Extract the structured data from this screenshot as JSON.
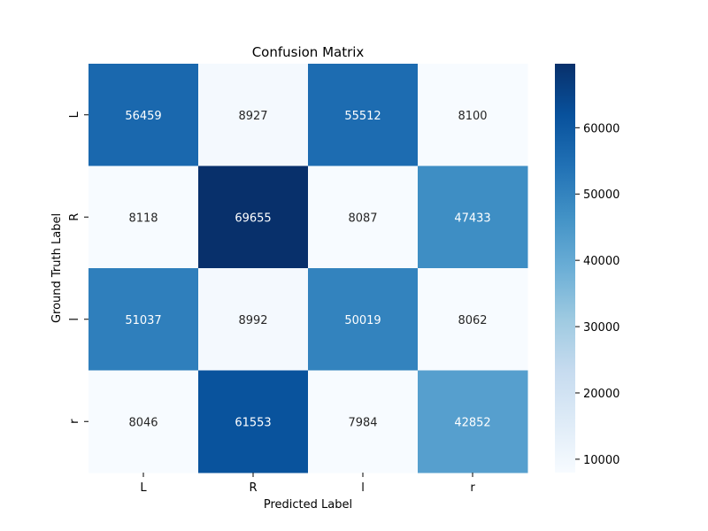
{
  "chart_data": {
    "type": "heatmap",
    "title": "Confusion Matrix",
    "xlabel": "Predicted Label",
    "ylabel": "Ground Truth Label",
    "x_categories": [
      "L",
      "R",
      "l",
      "r"
    ],
    "y_categories": [
      "L",
      "R",
      "l",
      "r"
    ],
    "values": [
      [
        56459,
        8927,
        55512,
        8100
      ],
      [
        8118,
        69655,
        8087,
        47433
      ],
      [
        51037,
        8992,
        50019,
        8062
      ],
      [
        8046,
        61553,
        7984,
        42852
      ]
    ],
    "colormap": "Blues",
    "colorbar": {
      "ticks": [
        10000,
        20000,
        30000,
        40000,
        50000,
        60000
      ],
      "tick_labels": [
        "10000",
        "20000",
        "30000",
        "40000",
        "50000",
        "60000"
      ],
      "range": [
        7984,
        69655
      ]
    },
    "grid": false
  }
}
